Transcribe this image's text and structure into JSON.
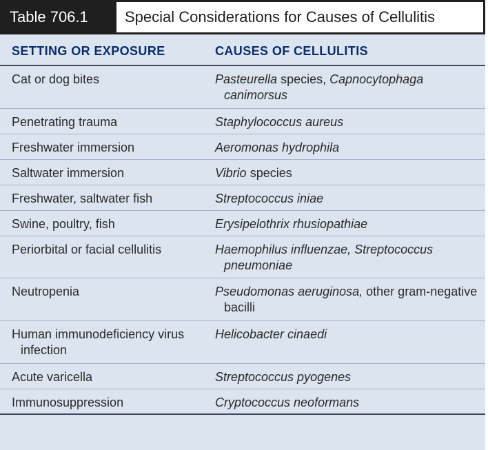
{
  "table": {
    "number": "Table 706.1",
    "title": "Special Considerations for Causes of Cellulitis",
    "columns": [
      "SETTING OR EXPOSURE",
      "CAUSES OF CELLULITIS"
    ],
    "rows": [
      {
        "setting": "Cat or dog bites",
        "cause": [
          {
            "t": "Pasteurella",
            "i": true
          },
          {
            "t": " species, ",
            "i": false
          },
          {
            "t": "Capnocytophaga canimorsus",
            "i": true
          }
        ]
      },
      {
        "setting": "Penetrating trauma",
        "cause": [
          {
            "t": "Staphylococcus aureus",
            "i": true
          }
        ]
      },
      {
        "setting": "Freshwater immersion",
        "cause": [
          {
            "t": "Aeromonas hydrophila",
            "i": true
          }
        ]
      },
      {
        "setting": "Saltwater immersion",
        "cause": [
          {
            "t": "Vibrio",
            "i": true
          },
          {
            "t": " species",
            "i": false
          }
        ]
      },
      {
        "setting": "Freshwater, saltwater fish",
        "cause": [
          {
            "t": "Streptococcus iniae",
            "i": true
          }
        ]
      },
      {
        "setting": "Swine, poultry, fish",
        "cause": [
          {
            "t": "Erysipelothrix rhusiopathiae",
            "i": true
          }
        ]
      },
      {
        "setting": "Periorbital or facial cellulitis",
        "cause": [
          {
            "t": "Haemophilus influenzae, Streptococcus pneumoniae",
            "i": true
          }
        ]
      },
      {
        "setting": "Neutropenia",
        "cause": [
          {
            "t": "Pseudomonas aeruginosa,",
            "i": true
          },
          {
            "t": " other gram-negative bacilli",
            "i": false
          }
        ]
      },
      {
        "setting": "Human immunodeficiency virus infection",
        "cause": [
          {
            "t": "Helicobacter cinaedi",
            "i": true
          }
        ]
      },
      {
        "setting": "Acute varicella",
        "cause": [
          {
            "t": "Streptococcus pyogenes",
            "i": true
          }
        ]
      },
      {
        "setting": "Immunosuppression",
        "cause": [
          {
            "t": "Cryptococcus neoformans",
            "i": true
          }
        ]
      }
    ]
  }
}
